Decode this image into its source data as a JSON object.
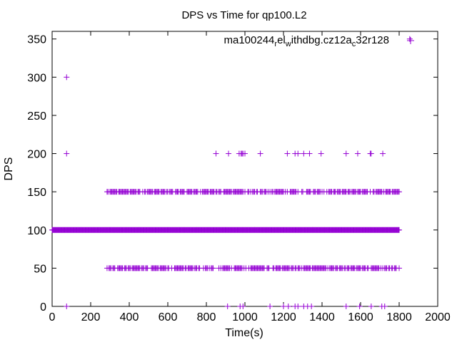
{
  "chart_data": {
    "type": "scatter",
    "title": "DPS vs Time for qp100.L2",
    "xlabel": "Time(s)",
    "ylabel": "DPS",
    "xlim": [
      0,
      2000
    ],
    "ylim": [
      0,
      360
    ],
    "xticks": [
      0,
      200,
      400,
      600,
      800,
      1000,
      1200,
      1400,
      1600,
      1800,
      2000
    ],
    "yticks": [
      0,
      50,
      100,
      150,
      200,
      250,
      300,
      350
    ],
    "grid": false,
    "legend_position": "top-right",
    "marker": "plus",
    "color": "#9400d3",
    "series": [
      {
        "name_parts": [
          "ma100244",
          "r",
          "el",
          "w",
          "ithdbg.cz12a",
          "c",
          "32r128"
        ],
        "bands": [
          {
            "y": 100,
            "x_start": 0,
            "x_end": 1800,
            "step": 3
          },
          {
            "y": 150,
            "x_start": 285,
            "x_end": 1800,
            "step": 5
          },
          {
            "y": 50,
            "x_start": 285,
            "x_end": 1800,
            "step": 5
          }
        ],
        "points": [
          [
            75,
            300
          ],
          [
            75,
            200
          ],
          [
            75,
            0
          ],
          [
            850,
            200
          ],
          [
            915,
            200
          ],
          [
            970,
            200
          ],
          [
            980,
            200
          ],
          [
            985,
            200
          ],
          [
            990,
            200
          ],
          [
            1000,
            200
          ],
          [
            1080,
            200
          ],
          [
            1220,
            200
          ],
          [
            1260,
            200
          ],
          [
            1275,
            200
          ],
          [
            1305,
            200
          ],
          [
            1335,
            200
          ],
          [
            1395,
            200
          ],
          [
            1525,
            200
          ],
          [
            1585,
            200
          ],
          [
            1650,
            200
          ],
          [
            1655,
            200
          ],
          [
            1715,
            200
          ],
          [
            910,
            0
          ],
          [
            975,
            0
          ],
          [
            990,
            0
          ],
          [
            1130,
            0
          ],
          [
            1200,
            0
          ],
          [
            1225,
            0
          ],
          [
            1260,
            0
          ],
          [
            1275,
            0
          ],
          [
            1305,
            0
          ],
          [
            1325,
            0
          ],
          [
            1345,
            0
          ],
          [
            1525,
            0
          ],
          [
            1595,
            0
          ],
          [
            1655,
            0
          ],
          [
            1710,
            0
          ],
          [
            1725,
            0
          ],
          [
            1855,
            350
          ]
        ]
      }
    ]
  }
}
